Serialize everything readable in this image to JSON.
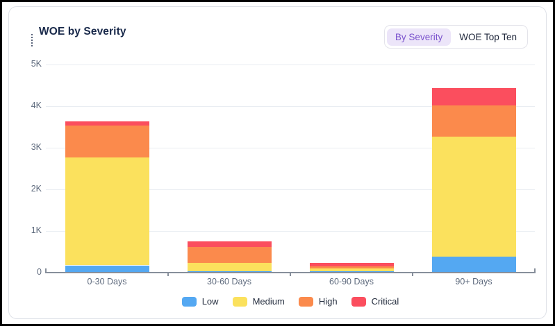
{
  "widget": {
    "title": "WOE by Severity",
    "toggle": {
      "options": [
        {
          "label": "By Severity",
          "selected": true
        },
        {
          "label": "WOE Top Ten",
          "selected": false
        }
      ]
    }
  },
  "chart_data": {
    "type": "bar",
    "stacked": true,
    "title": "WOE by Severity",
    "xlabel": "",
    "ylabel": "",
    "categories": [
      "0-30 Days",
      "30-60 Days",
      "60-90 Days",
      "90+ Days"
    ],
    "series": [
      {
        "name": "Low",
        "color": "#54a8f2",
        "values": [
          175,
          40,
          30,
          390
        ]
      },
      {
        "name": "Medium",
        "color": "#fbe15d",
        "values": [
          2590,
          200,
          70,
          2880
        ]
      },
      {
        "name": "High",
        "color": "#fb8a4c",
        "values": [
          775,
          380,
          50,
          750
        ]
      },
      {
        "name": "Critical",
        "color": "#fb4e5e",
        "values": [
          100,
          130,
          85,
          420
        ]
      }
    ],
    "totals": [
      3640,
      750,
      235,
      4440
    ],
    "ylim": [
      0,
      5000
    ],
    "y_tick_interval": 1000,
    "y_tick_labels": [
      "0",
      "1K",
      "2K",
      "3K",
      "4K",
      "5K"
    ],
    "grid": true,
    "legend_position": "bottom"
  },
  "colors": {
    "accent_purple": "#7a52cd",
    "accent_purple_bg": "#ece5f9",
    "title_text": "#19294a",
    "axis_text": "#5e6a7d",
    "gridline": "#e9edf2",
    "axis_line": "#878f9b",
    "card_border": "#dfe2e8"
  }
}
